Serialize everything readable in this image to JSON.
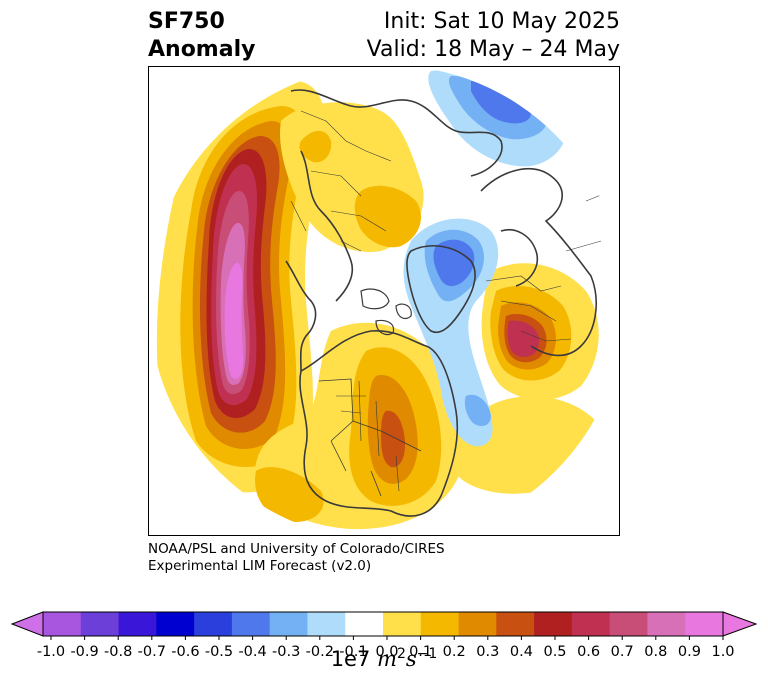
{
  "title": {
    "left_line1": "SF750",
    "left_line2": "Anomaly",
    "right_line1": "Init: Sat 10 May 2025",
    "right_line2": "Valid: 18 May – 24 May"
  },
  "credit": {
    "line1": "NOAA/PSL and University of Colorado/CIRES",
    "line2": "Experimental LIM Forecast (v2.0)"
  },
  "colorbar": {
    "ticks": [
      "-1.0",
      "-0.9",
      "-0.8",
      "-0.7",
      "-0.6",
      "-0.5",
      "-0.4",
      "-0.3",
      "-0.2",
      "-0.1",
      "0.0",
      "0.1",
      "0.2",
      "0.3",
      "0.4",
      "0.5",
      "0.6",
      "0.7",
      "0.8",
      "0.9",
      "1.0"
    ],
    "colors": [
      "#a855e0",
      "#6c3fd8",
      "#3a17d8",
      "#0000d0",
      "#2b3fdc",
      "#4f78ec",
      "#74b0f4",
      "#b0dcfc",
      "#ffffff",
      "#ffe04a",
      "#f4b800",
      "#e08a00",
      "#c85010",
      "#b02020",
      "#c03050",
      "#c84e78",
      "#d870b8",
      "#e878e0"
    ],
    "under_color": "#d070e8",
    "over_color": "#e878e0",
    "label_prefix": "1e7",
    "label_unit_m": "m",
    "label_unit_m_exp": "2",
    "label_unit_s": "s",
    "label_unit_s_exp": "−1"
  }
}
